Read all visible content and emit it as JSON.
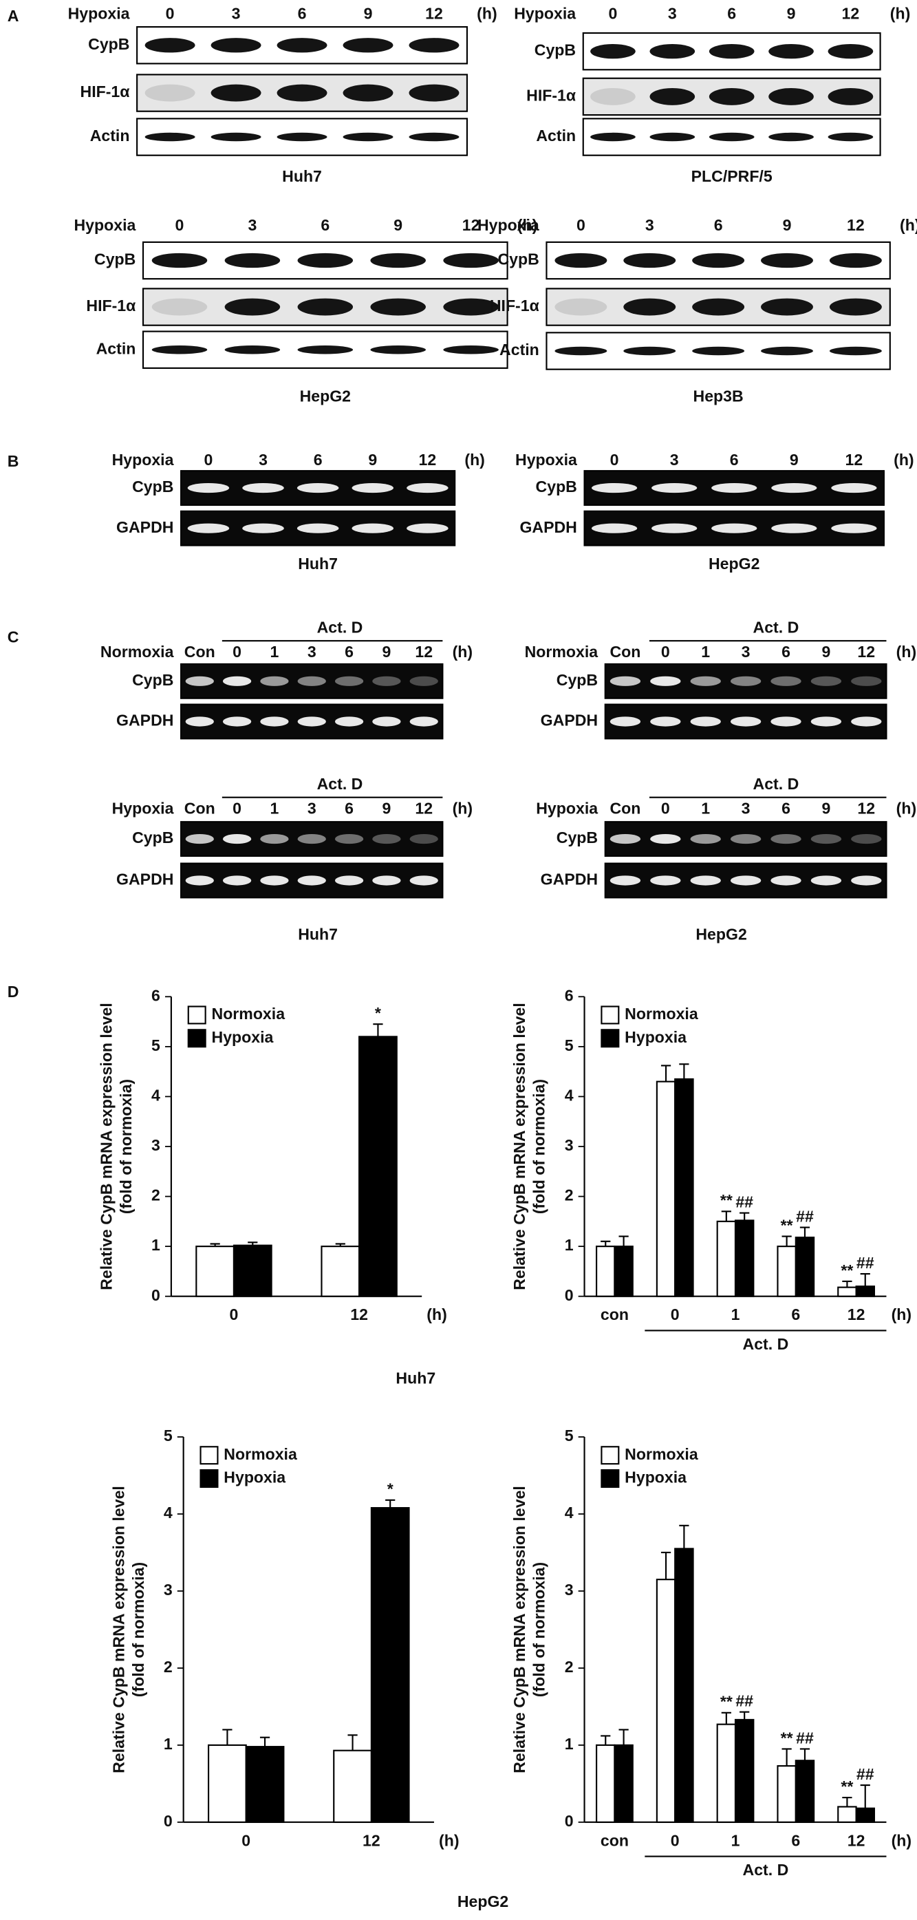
{
  "panel_labels": [
    "A",
    "B",
    "C",
    "D"
  ],
  "panel_a": {
    "blots": [
      {
        "condition": "Hypoxia",
        "lanes": [
          "0",
          "3",
          "6",
          "9",
          "12"
        ],
        "unit": "(h)",
        "rows": [
          "CypB",
          "HIF-1α",
          "Actin"
        ],
        "cell_line": "Huh7"
      },
      {
        "condition": "Hypoxia",
        "lanes": [
          "0",
          "3",
          "6",
          "9",
          "12"
        ],
        "unit": "(h)",
        "rows": [
          "CypB",
          "HIF-1α",
          "Actin"
        ],
        "cell_line": "PLC/PRF/5"
      },
      {
        "condition": "Hypoxia",
        "lanes": [
          "0",
          "3",
          "6",
          "9",
          "12"
        ],
        "unit": "(h)",
        "rows": [
          "CypB",
          "HIF-1α",
          "Actin"
        ],
        "cell_line": "HepG2"
      },
      {
        "condition": "Hypoxia",
        "lanes": [
          "0",
          "3",
          "6",
          "9",
          "12"
        ],
        "unit": "(h)",
        "rows": [
          "CypB",
          "HIF-1α",
          "Actin"
        ],
        "cell_line": "Hep3B"
      }
    ]
  },
  "panel_b": {
    "gels": [
      {
        "condition": "Hypoxia",
        "lanes": [
          "0",
          "3",
          "6",
          "9",
          "12"
        ],
        "unit": "(h)",
        "rows": [
          "CypB",
          "GAPDH"
        ],
        "cell_line": "Huh7"
      },
      {
        "condition": "Hypoxia",
        "lanes": [
          "0",
          "3",
          "6",
          "9",
          "12"
        ],
        "unit": "(h)",
        "rows": [
          "CypB",
          "GAPDH"
        ],
        "cell_line": "HepG2"
      }
    ]
  },
  "panel_c": {
    "gels": [
      {
        "condition": "Normoxia",
        "treatment": "Act. D",
        "lanes": [
          "Con",
          "0",
          "1",
          "3",
          "6",
          "9",
          "12"
        ],
        "unit": "(h)",
        "rows": [
          "CypB",
          "GAPDH"
        ]
      },
      {
        "condition": "Normoxia",
        "treatment": "Act. D",
        "lanes": [
          "Con",
          "0",
          "1",
          "3",
          "6",
          "9",
          "12"
        ],
        "unit": "(h)",
        "rows": [
          "CypB",
          "GAPDH"
        ]
      },
      {
        "condition": "Hypoxia",
        "treatment": "Act. D",
        "lanes": [
          "Con",
          "0",
          "1",
          "3",
          "6",
          "9",
          "12"
        ],
        "unit": "(h)",
        "rows": [
          "CypB",
          "GAPDH"
        ]
      },
      {
        "condition": "Hypoxia",
        "treatment": "Act. D",
        "lanes": [
          "Con",
          "0",
          "1",
          "3",
          "6",
          "9",
          "12"
        ],
        "unit": "(h)",
        "rows": [
          "CypB",
          "GAPDH"
        ]
      }
    ],
    "cell_lines": [
      "Huh7",
      "HepG2"
    ]
  },
  "panel_d_cell_lines": [
    "Huh7",
    "HepG2"
  ],
  "chart_data": [
    {
      "type": "bar",
      "ylabel": "Relative CypB mRNA expression level",
      "ylabel_sub": "(fold of normoxia)",
      "categories": [
        "0",
        "12"
      ],
      "x_unit": "(h)",
      "ylim": [
        0,
        6
      ],
      "yticks": [
        0,
        1,
        2,
        3,
        4,
        5,
        6
      ],
      "legend": "upper left",
      "series": [
        {
          "name": "Normoxia",
          "color": "#ffffff",
          "values": [
            1,
            1
          ],
          "errors": [
            0.05,
            0.05
          ]
        },
        {
          "name": "Hypoxia",
          "color": "#000000",
          "values": [
            1.02,
            5.2
          ],
          "errors": [
            0.06,
            0.25
          ],
          "annotations": [
            null,
            "*"
          ]
        }
      ]
    },
    {
      "type": "bar",
      "ylabel": "Relative CypB mRNA expression level",
      "ylabel_sub": "(fold of normoxia)",
      "categories": [
        "con",
        "0",
        "1",
        "6",
        "12"
      ],
      "x_unit": "(h)",
      "group_label": "Act. D",
      "ylim": [
        0,
        6
      ],
      "yticks": [
        0,
        1,
        2,
        3,
        4,
        5,
        6
      ],
      "legend": "upper left",
      "series": [
        {
          "name": "Normoxia",
          "color": "#ffffff",
          "values": [
            1,
            4.3,
            1.5,
            1.0,
            0.18
          ],
          "errors": [
            0.1,
            0.32,
            0.2,
            0.2,
            0.12
          ],
          "annotations": [
            null,
            null,
            "**",
            "**",
            "**"
          ]
        },
        {
          "name": "Hypoxia",
          "color": "#000000",
          "values": [
            1.0,
            4.35,
            1.52,
            1.18,
            0.2
          ],
          "errors": [
            0.2,
            0.3,
            0.15,
            0.2,
            0.25
          ],
          "annotations": [
            null,
            null,
            "##",
            "##",
            "##"
          ]
        }
      ]
    },
    {
      "type": "bar",
      "ylabel": "Relative CypB mRNA expression level",
      "ylabel_sub": "(fold of normoxia)",
      "categories": [
        "0",
        "12"
      ],
      "x_unit": "(h)",
      "ylim": [
        0,
        5
      ],
      "yticks": [
        0,
        1,
        2,
        3,
        4,
        5
      ],
      "legend": "upper left",
      "series": [
        {
          "name": "Normoxia",
          "color": "#ffffff",
          "values": [
            1,
            0.93
          ],
          "errors": [
            0.2,
            0.2
          ]
        },
        {
          "name": "Hypoxia",
          "color": "#000000",
          "values": [
            0.98,
            4.08
          ],
          "errors": [
            0.12,
            0.1
          ],
          "annotations": [
            null,
            "*"
          ]
        }
      ]
    },
    {
      "type": "bar",
      "ylabel": "Relative CypB mRNA expression level",
      "ylabel_sub": "(fold of normoxia)",
      "categories": [
        "con",
        "0",
        "1",
        "6",
        "12"
      ],
      "x_unit": "(h)",
      "group_label": "Act. D",
      "ylim": [
        0,
        5
      ],
      "yticks": [
        0,
        1,
        2,
        3,
        4,
        5
      ],
      "legend": "upper left",
      "series": [
        {
          "name": "Normoxia",
          "color": "#ffffff",
          "values": [
            1,
            3.15,
            1.27,
            0.73,
            0.2
          ],
          "errors": [
            0.12,
            0.35,
            0.15,
            0.22,
            0.12
          ],
          "annotations": [
            null,
            null,
            "**",
            "**",
            "**"
          ]
        },
        {
          "name": "Hypoxia",
          "color": "#000000",
          "values": [
            1.0,
            3.55,
            1.33,
            0.8,
            0.18
          ],
          "errors": [
            0.2,
            0.3,
            0.1,
            0.15,
            0.3
          ],
          "annotations": [
            null,
            null,
            "##",
            "##",
            "##"
          ]
        }
      ]
    }
  ]
}
